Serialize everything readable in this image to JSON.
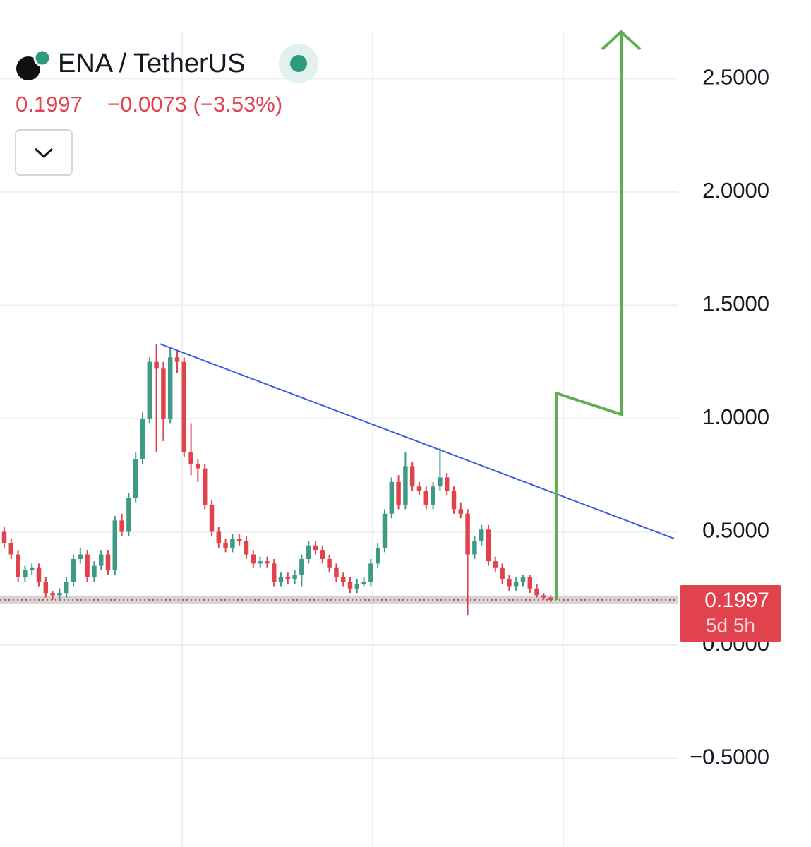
{
  "chart_data": {
    "type": "candlestick",
    "title": "ENA / TetherUS",
    "last_price": 0.1997,
    "change": "−0.0073 (−3.53%)",
    "countdown": "5d 5h",
    "up_color": "#3d9b85",
    "down_color": "#e0434e",
    "grid": true,
    "ylim": [
      -0.891,
      2.847
    ],
    "yticks": [
      {
        "value": -0.5,
        "label": "−0.5000"
      },
      {
        "value": 0,
        "label": "0.0000"
      },
      {
        "value": 0.5,
        "label": "0.5000"
      },
      {
        "value": 1,
        "label": "1.0000"
      },
      {
        "value": 1.5,
        "label": "1.5000"
      },
      {
        "value": 2,
        "label": "2.0000"
      },
      {
        "value": 2.5,
        "label": "2.5000"
      }
    ],
    "candles": [
      [
        0.5,
        0.52,
        0.43,
        0.45
      ],
      [
        0.45,
        0.47,
        0.38,
        0.4
      ],
      [
        0.4,
        0.42,
        0.28,
        0.3
      ],
      [
        0.3,
        0.35,
        0.28,
        0.33
      ],
      [
        0.33,
        0.36,
        0.31,
        0.34
      ],
      [
        0.34,
        0.36,
        0.26,
        0.28
      ],
      [
        0.28,
        0.3,
        0.21,
        0.23
      ],
      [
        0.23,
        0.24,
        0.2,
        0.22
      ],
      [
        0.22,
        0.25,
        0.2,
        0.23
      ],
      [
        0.23,
        0.3,
        0.21,
        0.28
      ],
      [
        0.28,
        0.4,
        0.26,
        0.38
      ],
      [
        0.38,
        0.43,
        0.36,
        0.4
      ],
      [
        0.4,
        0.42,
        0.28,
        0.3
      ],
      [
        0.3,
        0.37,
        0.28,
        0.35
      ],
      [
        0.35,
        0.42,
        0.33,
        0.4
      ],
      [
        0.4,
        0.42,
        0.31,
        0.33
      ],
      [
        0.33,
        0.57,
        0.31,
        0.55
      ],
      [
        0.55,
        0.58,
        0.48,
        0.5
      ],
      [
        0.5,
        0.67,
        0.48,
        0.65
      ],
      [
        0.65,
        0.85,
        0.63,
        0.82
      ],
      [
        0.82,
        1.03,
        0.8,
        1.0
      ],
      [
        1.0,
        1.27,
        0.98,
        1.25
      ],
      [
        1.25,
        1.33,
        0.85,
        1.22
      ],
      [
        1.22,
        1.25,
        0.9,
        1.0
      ],
      [
        1.0,
        1.31,
        0.98,
        1.27
      ],
      [
        1.27,
        1.3,
        1.2,
        1.25
      ],
      [
        1.25,
        1.27,
        0.83,
        0.85
      ],
      [
        0.85,
        0.98,
        0.75,
        0.8
      ],
      [
        0.8,
        0.82,
        0.72,
        0.78
      ],
      [
        0.78,
        0.8,
        0.6,
        0.62
      ],
      [
        0.62,
        0.64,
        0.48,
        0.5
      ],
      [
        0.5,
        0.52,
        0.43,
        0.45
      ],
      [
        0.45,
        0.47,
        0.41,
        0.43
      ],
      [
        0.43,
        0.49,
        0.41,
        0.47
      ],
      [
        0.47,
        0.49,
        0.44,
        0.46
      ],
      [
        0.46,
        0.48,
        0.38,
        0.4
      ],
      [
        0.4,
        0.42,
        0.34,
        0.36
      ],
      [
        0.36,
        0.39,
        0.34,
        0.37
      ],
      [
        0.37,
        0.39,
        0.34,
        0.36
      ],
      [
        0.36,
        0.38,
        0.26,
        0.28
      ],
      [
        0.28,
        0.32,
        0.26,
        0.3
      ],
      [
        0.3,
        0.32,
        0.27,
        0.29
      ],
      [
        0.29,
        0.33,
        0.27,
        0.31
      ],
      [
        0.31,
        0.4,
        0.26,
        0.38
      ],
      [
        0.38,
        0.46,
        0.36,
        0.44
      ],
      [
        0.44,
        0.46,
        0.4,
        0.42
      ],
      [
        0.42,
        0.44,
        0.36,
        0.38
      ],
      [
        0.38,
        0.4,
        0.32,
        0.34
      ],
      [
        0.34,
        0.36,
        0.28,
        0.3
      ],
      [
        0.3,
        0.32,
        0.26,
        0.28
      ],
      [
        0.28,
        0.3,
        0.23,
        0.25
      ],
      [
        0.25,
        0.29,
        0.23,
        0.27
      ],
      [
        0.27,
        0.3,
        0.26,
        0.28
      ],
      [
        0.28,
        0.38,
        0.26,
        0.36
      ],
      [
        0.36,
        0.45,
        0.34,
        0.43
      ],
      [
        0.43,
        0.6,
        0.41,
        0.58
      ],
      [
        0.58,
        0.74,
        0.56,
        0.72
      ],
      [
        0.72,
        0.75,
        0.6,
        0.62
      ],
      [
        0.62,
        0.85,
        0.6,
        0.79
      ],
      [
        0.79,
        0.81,
        0.68,
        0.7
      ],
      [
        0.7,
        0.72,
        0.66,
        0.68
      ],
      [
        0.68,
        0.7,
        0.6,
        0.62
      ],
      [
        0.62,
        0.72,
        0.6,
        0.7
      ],
      [
        0.7,
        0.87,
        0.68,
        0.74
      ],
      [
        0.74,
        0.76,
        0.66,
        0.68
      ],
      [
        0.68,
        0.7,
        0.58,
        0.6
      ],
      [
        0.6,
        0.63,
        0.56,
        0.58
      ],
      [
        0.58,
        0.6,
        0.13,
        0.4
      ],
      [
        0.4,
        0.48,
        0.38,
        0.46
      ],
      [
        0.46,
        0.53,
        0.44,
        0.51
      ],
      [
        0.51,
        0.53,
        0.35,
        0.37
      ],
      [
        0.37,
        0.39,
        0.32,
        0.34
      ],
      [
        0.34,
        0.36,
        0.27,
        0.29
      ],
      [
        0.29,
        0.31,
        0.24,
        0.26
      ],
      [
        0.26,
        0.3,
        0.24,
        0.28
      ],
      [
        0.28,
        0.31,
        0.26,
        0.3
      ],
      [
        0.3,
        0.31,
        0.23,
        0.25
      ],
      [
        0.25,
        0.27,
        0.21,
        0.22
      ],
      [
        0.22,
        0.23,
        0.2,
        0.21
      ],
      [
        0.21,
        0.22,
        0.19,
        0.1997
      ]
    ]
  }
}
